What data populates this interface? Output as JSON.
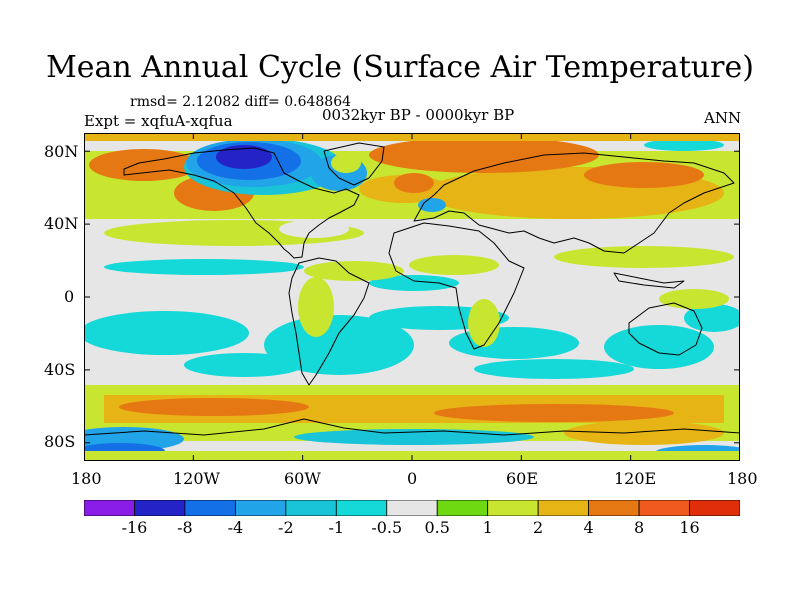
{
  "header": {
    "title": "Mean Annual Cycle (Surface Air Temperature)",
    "stats": "rmsd= 2.12082 diff= 0.648864",
    "experiment": "Expt = xqfuA-xqfua",
    "period": "0032kyr BP - 0000kyr BP",
    "season": "ANN"
  },
  "axes": {
    "lat_labels": [
      "80N",
      "40N",
      "0",
      "40S",
      "80S"
    ],
    "lon_labels": [
      "180",
      "120W",
      "60W",
      "0",
      "60E",
      "120E",
      "180"
    ],
    "lat_values": [
      80,
      40,
      0,
      -40,
      -80
    ],
    "lon_values": [
      -180,
      -120,
      -60,
      0,
      60,
      120,
      180
    ]
  },
  "colorbar": {
    "labels": [
      "-16",
      "-8",
      "-4",
      "-2",
      "-1",
      "-0.5",
      "0.5",
      "1",
      "2",
      "4",
      "8",
      "16"
    ],
    "colors": [
      "#8a1ee8",
      "#2323c8",
      "#1470e6",
      "#21a4e8",
      "#19c4d8",
      "#15d8d8",
      "#e6e6e6",
      "#6ed810",
      "#c8e630",
      "#e6b414",
      "#e67814",
      "#f05a1e",
      "#e02d0a"
    ]
  },
  "field_colors": {
    "neutral": "#e6e6e6",
    "weak_cool": "#15d8d8",
    "cool": "#19c4d8",
    "moderate_cool": "#21a4e8",
    "strong_cool": "#1470e6",
    "very_strong_cool": "#2323c8",
    "weak_warm": "#6ed810",
    "warm": "#c8e630",
    "moderate_warm": "#e6b414",
    "strong_warm": "#e67814",
    "very_strong_warm": "#f05a1e"
  }
}
